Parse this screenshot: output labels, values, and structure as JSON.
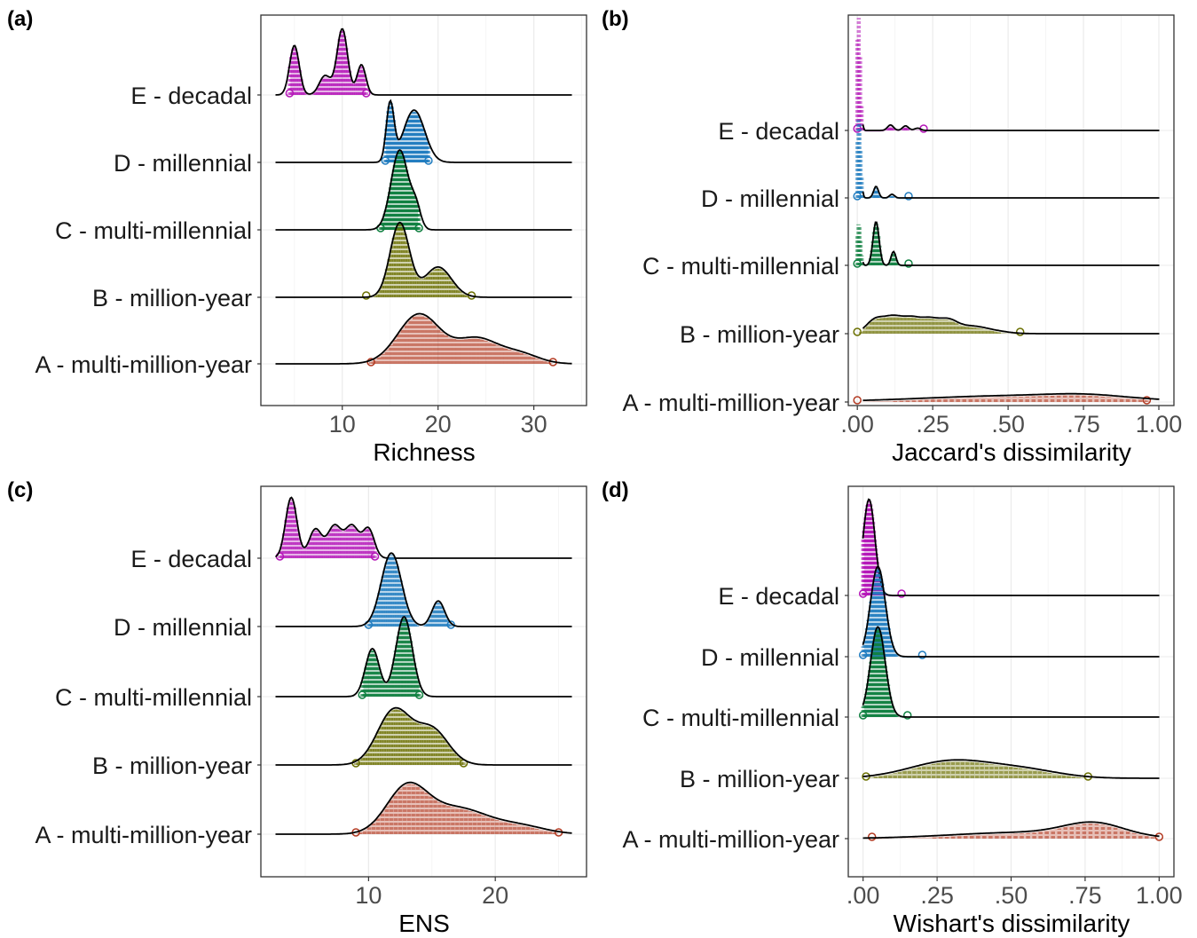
{
  "figure": {
    "categories": [
      "A - multi-million-year",
      "B - million-year",
      "C - multi-millennial",
      "D - millennial",
      "E - decadal"
    ],
    "colors": {
      "A - multi-million-year": "#b33a22",
      "B - million-year": "#6b7000",
      "C - multi-millennial": "#0f8040",
      "D - millennial": "#1f7cc0",
      "E - decadal": "#b515b8"
    }
  },
  "chart_data": [
    {
      "panel": "(a)",
      "type": "ridgeline",
      "xlabel": "Richness",
      "xlim": [
        1.5,
        35.5
      ],
      "xticks": [
        10,
        20,
        30
      ],
      "xtick_labels": [
        "10",
        "20",
        "30"
      ],
      "grid": true,
      "series": [
        {
          "name": "A - multi-million-year",
          "peaks": [
            [
              18,
              0.9,
              2.2
            ],
            [
              24,
              0.45,
              2.2
            ],
            [
              28.5,
              0.18,
              2.0
            ]
          ],
          "range": [
            13,
            32
          ]
        },
        {
          "name": "B - million-year",
          "peaks": [
            [
              16,
              1.35,
              1.0
            ],
            [
              20,
              0.55,
              1.4
            ]
          ],
          "range": [
            12.5,
            23.5
          ]
        },
        {
          "name": "C - multi-millennial",
          "peaks": [
            [
              16,
              1.45,
              0.9
            ],
            [
              17.7,
              0.35,
              0.5
            ]
          ],
          "range": [
            14,
            18
          ]
        },
        {
          "name": "D - millennial",
          "peaks": [
            [
              15,
              1.05,
              0.4
            ],
            [
              17.5,
              0.95,
              1.1
            ]
          ],
          "range": [
            14.5,
            19
          ]
        },
        {
          "name": "E - decadal",
          "peaks": [
            [
              5,
              0.9,
              0.5
            ],
            [
              8.2,
              0.35,
              0.6
            ],
            [
              10,
              1.2,
              0.55
            ],
            [
              12,
              0.55,
              0.45
            ]
          ],
          "range": [
            4.5,
            12.5
          ]
        }
      ]
    },
    {
      "panel": "(b)",
      "type": "ridgeline",
      "xlabel": "Jaccard's dissimilarity",
      "xlim": [
        -0.03,
        1.05
      ],
      "xticks": [
        0,
        0.25,
        0.5,
        0.75,
        1.0
      ],
      "xtick_labels": [
        ".00",
        ".25",
        ".50",
        ".75",
        "1.00"
      ],
      "grid": true,
      "series": [
        {
          "name": "A - multi-million-year",
          "peaks": [
            [
              0.55,
              0.14,
              0.32
            ],
            [
              0.76,
              0.06,
              0.12
            ]
          ],
          "range": [
            0.0,
            0.96
          ]
        },
        {
          "name": "B - million-year",
          "peaks": [
            [
              0.06,
              0.3,
              0.03
            ],
            [
              0.12,
              0.32,
              0.03
            ],
            [
              0.18,
              0.3,
              0.03
            ],
            [
              0.24,
              0.28,
              0.03
            ],
            [
              0.3,
              0.24,
              0.03
            ],
            [
              0.37,
              0.15,
              0.05
            ],
            [
              0.45,
              0.05,
              0.05
            ]
          ],
          "range": [
            0.0,
            0.54
          ]
        },
        {
          "name": "C - multi-millennial",
          "peaks": [
            [
              0.005,
              0.95,
              0.006
            ],
            [
              0.062,
              0.95,
              0.01
            ],
            [
              0.12,
              0.3,
              0.008
            ]
          ],
          "range": [
            0.0,
            0.17
          ]
        },
        {
          "name": "D - millennial",
          "peaks": [
            [
              0.005,
              1.8,
              0.006
            ],
            [
              0.062,
              0.25,
              0.008
            ],
            [
              0.115,
              0.08,
              0.008
            ]
          ],
          "range": [
            0.0,
            0.17
          ]
        },
        {
          "name": "E - decadal",
          "peaks": [
            [
              0.004,
              2.5,
              0.006
            ],
            [
              0.11,
              0.12,
              0.01
            ],
            [
              0.16,
              0.1,
              0.01
            ],
            [
              0.2,
              0.05,
              0.01
            ]
          ],
          "range": [
            0.0,
            0.22
          ]
        }
      ]
    },
    {
      "panel": "(c)",
      "type": "ridgeline",
      "xlabel": "ENS",
      "xlim": [
        1.5,
        27.2
      ],
      "xticks": [
        10,
        20
      ],
      "xtick_labels": [
        "10",
        "20"
      ],
      "grid": true,
      "series": [
        {
          "name": "A - multi-million-year",
          "peaks": [
            [
              13,
              0.7,
              1.6
            ],
            [
              17,
              0.4,
              2.4
            ],
            [
              22,
              0.12,
              2.0
            ]
          ],
          "range": [
            9,
            25
          ]
        },
        {
          "name": "B - million-year",
          "peaks": [
            [
              12,
              0.85,
              1.3
            ],
            [
              15,
              0.55,
              1.3
            ]
          ],
          "range": [
            9,
            17.5
          ]
        },
        {
          "name": "C - multi-millennial",
          "peaks": [
            [
              10.3,
              0.75,
              0.55
            ],
            [
              12.8,
              1.25,
              0.65
            ]
          ],
          "range": [
            9.5,
            14
          ]
        },
        {
          "name": "D - millennial",
          "peaks": [
            [
              11.8,
              1.15,
              0.8
            ],
            [
              15.5,
              0.4,
              0.5
            ]
          ],
          "range": [
            10,
            16.5
          ]
        },
        {
          "name": "E - decadal",
          "peaks": [
            [
              3.9,
              0.95,
              0.45
            ],
            [
              5.8,
              0.45,
              0.5
            ],
            [
              7.3,
              0.5,
              0.55
            ],
            [
              8.7,
              0.5,
              0.55
            ],
            [
              10,
              0.45,
              0.45
            ]
          ],
          "range": [
            3,
            10.5
          ]
        }
      ]
    },
    {
      "panel": "(d)",
      "type": "ridgeline",
      "xlabel": "Wishart's dissimilarity",
      "xlim": [
        -0.05,
        1.05
      ],
      "xticks": [
        0,
        0.25,
        0.5,
        0.75,
        1.0
      ],
      "xtick_labels": [
        ".00",
        ".25",
        ".50",
        ".75",
        "1.00"
      ],
      "grid": true,
      "series": [
        {
          "name": "A - multi-million-year",
          "peaks": [
            [
              0.78,
              0.2,
              0.1
            ],
            [
              0.55,
              0.1,
              0.25
            ]
          ],
          "range": [
            0.03,
            1.0
          ]
        },
        {
          "name": "B - million-year",
          "peaks": [
            [
              0.3,
              0.28,
              0.14
            ],
            [
              0.55,
              0.12,
              0.12
            ]
          ],
          "range": [
            0.01,
            0.76
          ]
        },
        {
          "name": "C - multi-millennial",
          "peaks": [
            [
              0.05,
              1.45,
              0.025
            ]
          ],
          "range": [
            0.0,
            0.15
          ]
        },
        {
          "name": "D - millennial",
          "peaks": [
            [
              0.05,
              1.45,
              0.025
            ]
          ],
          "range": [
            0.0,
            0.2
          ]
        },
        {
          "name": "E - decadal",
          "peaks": [
            [
              0.02,
              1.55,
              0.02
            ]
          ],
          "range": [
            0.0,
            0.13
          ]
        }
      ]
    }
  ]
}
